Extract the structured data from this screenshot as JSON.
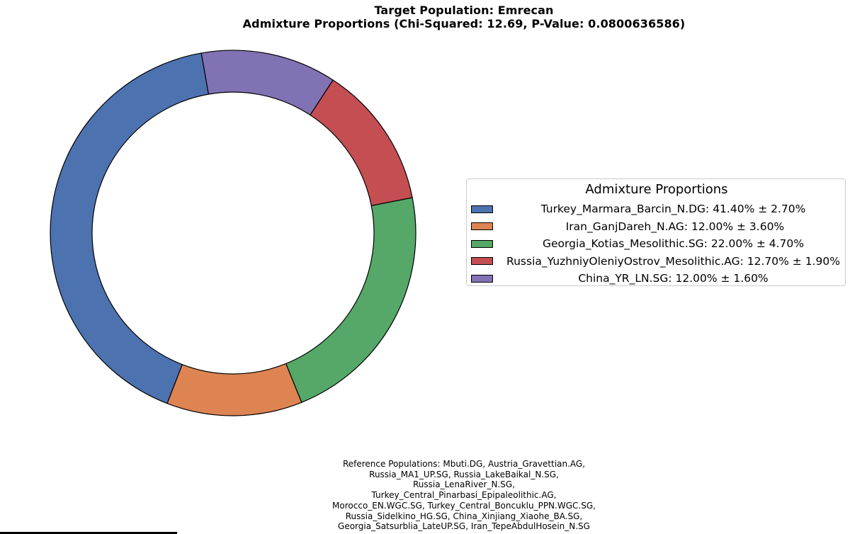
{
  "chart_data": {
    "type": "pie",
    "style": "donut",
    "title": [
      "Target Population: Emrecan",
      "Admixture Proportions (Chi-Squared: 12.69, P-Value: 0.0800636586)"
    ],
    "slices": [
      {
        "category": "Turkey_Marmara_Barcin_N.DG",
        "value": 41.4,
        "error": 2.7,
        "label": "Turkey_Marmara_Barcin_N.DG: 41.40% ± 2.70%",
        "color": "#4c72b0"
      },
      {
        "category": "Iran_GanjDareh_N.AG",
        "value": 12.0,
        "error": 3.6,
        "label": " Iran_GanjDareh_N.AG: 12.00% ± 3.60%",
        "color": "#dd8452"
      },
      {
        "category": "Georgia_Kotias_Mesolithic.SG",
        "value": 22.0,
        "error": 4.7,
        "label": "Georgia_Kotias_Mesolithic.SG: 22.00% ± 4.70%",
        "color": "#55a868"
      },
      {
        "category": "Russia_YuzhniyOleniyOstrov_Mesolithic.AG",
        "value": 12.7,
        "error": 1.9,
        "label": "Russia_YuzhniyOleniyOstrov_Mesolithic.AG: 12.70% ± 1.90%",
        "color": "#c44e52"
      },
      {
        "category": "China_YR_LN.SG",
        "value": 12.0,
        "error": 1.6,
        "label": "China_YR_LN.SG: 12.00% ± 1.60%",
        "color": "#8172b3"
      }
    ],
    "legend": {
      "title": "Admixture Proportions",
      "position": "right"
    },
    "reference_populations": [
      "Reference Populations: Mbuti.DG, Austria_Gravettian.AG,",
      "Russia_MA1_UP.SG, Russia_LakeBaikal_N.SG,",
      "Russia_LenaRiver_N.SG,",
      "Turkey_Central_Pinarbasi_Epipaleolithic.AG,",
      "Morocco_EN.WGC.SG, Turkey_Central_Boncuklu_PPN.WGC.SG,",
      "Russia_Sidelkino_HG.SG, China_Xinjiang_Xiaohe_BA.SG,",
      "Georgia_Satsurblia_LateUP.SG, Iran_TepeAbdulHosein_N.SG"
    ]
  }
}
